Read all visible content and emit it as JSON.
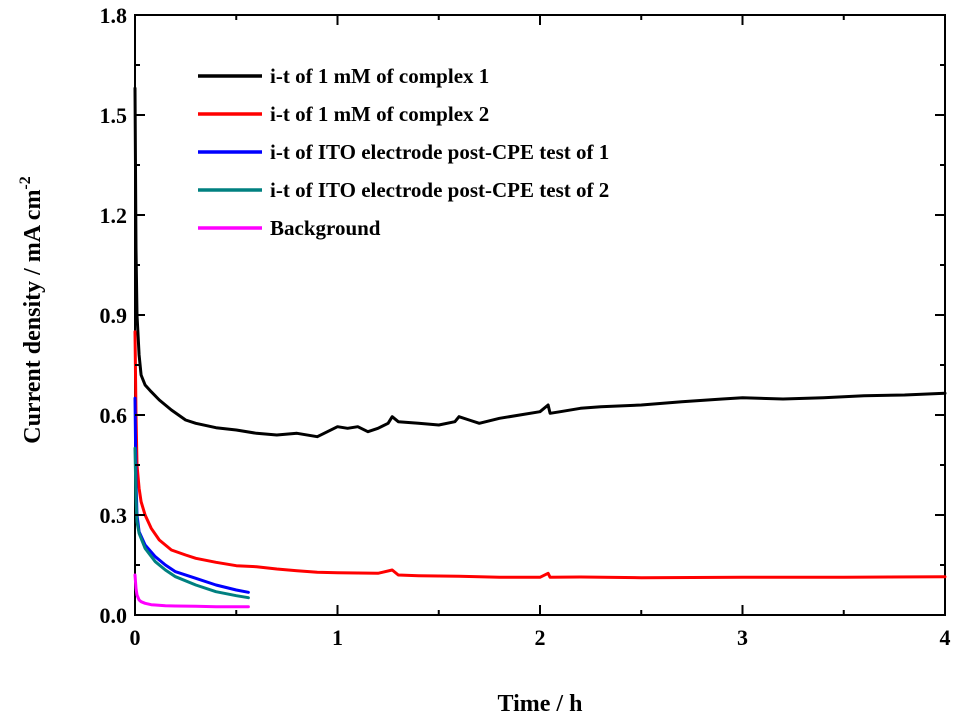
{
  "chart_data": {
    "type": "line",
    "xlabel": "Time / h",
    "ylabel": "Current density / mA cm",
    "ylabel_superscript": "-2",
    "xlim": [
      0,
      4
    ],
    "ylim": [
      0,
      1.8
    ],
    "xticks": [
      "0",
      "1",
      "2",
      "3",
      "4"
    ],
    "yticks": [
      "0.0",
      "0.3",
      "0.6",
      "0.9",
      "1.2",
      "1.5",
      "1.8"
    ],
    "grid": false,
    "legend_position": "top-left",
    "series": [
      {
        "name": "i-t of 1 mM of complex 1",
        "color": "#000000",
        "x": [
          0,
          0.005,
          0.01,
          0.02,
          0.03,
          0.05,
          0.08,
          0.12,
          0.18,
          0.25,
          0.3,
          0.4,
          0.5,
          0.6,
          0.7,
          0.8,
          0.9,
          0.95,
          1.0,
          1.05,
          1.1,
          1.15,
          1.2,
          1.25,
          1.27,
          1.3,
          1.4,
          1.5,
          1.58,
          1.6,
          1.65,
          1.7,
          1.8,
          1.9,
          2.0,
          2.04,
          2.05,
          2.1,
          2.2,
          2.3,
          2.5,
          2.7,
          2.9,
          3.0,
          3.2,
          3.4,
          3.6,
          3.8,
          4.0
        ],
        "y": [
          1.58,
          1.1,
          0.9,
          0.78,
          0.72,
          0.69,
          0.67,
          0.645,
          0.615,
          0.585,
          0.575,
          0.562,
          0.555,
          0.545,
          0.54,
          0.545,
          0.535,
          0.55,
          0.565,
          0.56,
          0.565,
          0.55,
          0.56,
          0.575,
          0.595,
          0.58,
          0.575,
          0.57,
          0.58,
          0.595,
          0.585,
          0.575,
          0.59,
          0.6,
          0.61,
          0.63,
          0.605,
          0.61,
          0.62,
          0.625,
          0.63,
          0.64,
          0.648,
          0.652,
          0.648,
          0.652,
          0.658,
          0.66,
          0.665
        ]
      },
      {
        "name": "i-t of 1 mM of complex 2",
        "color": "#ff0000",
        "x": [
          0,
          0.005,
          0.01,
          0.02,
          0.03,
          0.05,
          0.08,
          0.12,
          0.18,
          0.25,
          0.3,
          0.4,
          0.5,
          0.6,
          0.7,
          0.8,
          0.9,
          1.0,
          1.2,
          1.27,
          1.3,
          1.4,
          1.6,
          1.8,
          2.0,
          2.04,
          2.05,
          2.2,
          2.5,
          3.0,
          3.5,
          4.0
        ],
        "y": [
          0.85,
          0.6,
          0.45,
          0.38,
          0.34,
          0.3,
          0.26,
          0.225,
          0.195,
          0.18,
          0.17,
          0.158,
          0.148,
          0.145,
          0.138,
          0.133,
          0.128,
          0.127,
          0.125,
          0.135,
          0.12,
          0.118,
          0.116,
          0.113,
          0.113,
          0.125,
          0.113,
          0.114,
          0.112,
          0.113,
          0.113,
          0.115
        ]
      },
      {
        "name": "i-t of ITO electrode post-CPE test of 1",
        "color": "#0000ff",
        "x": [
          0,
          0.005,
          0.01,
          0.02,
          0.05,
          0.1,
          0.15,
          0.2,
          0.3,
          0.4,
          0.5,
          0.56
        ],
        "y": [
          0.65,
          0.4,
          0.3,
          0.25,
          0.21,
          0.175,
          0.15,
          0.13,
          0.11,
          0.09,
          0.075,
          0.068
        ]
      },
      {
        "name": "i-t of ITO electrode post-CPE test of 2",
        "color": "#008080",
        "x": [
          0,
          0.005,
          0.01,
          0.02,
          0.05,
          0.1,
          0.15,
          0.2,
          0.3,
          0.4,
          0.5,
          0.56
        ],
        "y": [
          0.5,
          0.35,
          0.28,
          0.245,
          0.2,
          0.16,
          0.135,
          0.115,
          0.09,
          0.07,
          0.058,
          0.052
        ]
      },
      {
        "name": "Background",
        "color": "#ff00ff",
        "x": [
          0,
          0.005,
          0.01,
          0.02,
          0.03,
          0.05,
          0.08,
          0.1,
          0.15,
          0.2,
          0.3,
          0.4,
          0.5,
          0.56
        ],
        "y": [
          0.12,
          0.08,
          0.06,
          0.045,
          0.04,
          0.035,
          0.031,
          0.03,
          0.028,
          0.027,
          0.026,
          0.025,
          0.025,
          0.025
        ]
      }
    ]
  }
}
